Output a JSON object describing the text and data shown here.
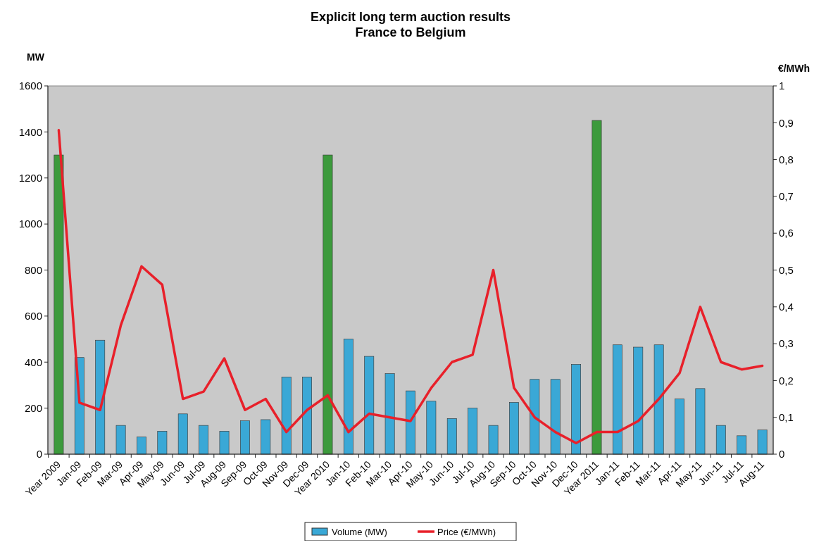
{
  "chart_data": {
    "type": "bar",
    "title": "Explicit long term auction results\nFrance to Belgium",
    "ylabel": "MW",
    "y2label": "€/MWh",
    "categories": [
      "Year 2009",
      "Jan-09",
      "Feb-09",
      "Mar-09",
      "Apr-09",
      "May-09",
      "Jun-09",
      "Jul-09",
      "Aug-09",
      "Sep-09",
      "Oct-09",
      "Nov-09",
      "Dec-09",
      "Year 2010",
      "Jan-10",
      "Feb-10",
      "Mar-10",
      "Apr-10",
      "May-10",
      "Jun-10",
      "Jul-10",
      "Aug-10",
      "Sep-10",
      "Oct-10",
      "Nov-10",
      "Dec-10",
      "Year 2011",
      "Jan-11",
      "Feb-11",
      "Mar-11",
      "Apr-11",
      "May-11",
      "Jun-11",
      "Jul-11",
      "Aug-11"
    ],
    "series": [
      {
        "name": "Volume (MW)",
        "color": "#3aa8d6",
        "colors": [
          "#3c9a3c",
          "#3aa8d6",
          "#3aa8d6",
          "#3aa8d6",
          "#3aa8d6",
          "#3aa8d6",
          "#3aa8d6",
          "#3aa8d6",
          "#3aa8d6",
          "#3aa8d6",
          "#3aa8d6",
          "#3aa8d6",
          "#3aa8d6",
          "#3c9a3c",
          "#3aa8d6",
          "#3aa8d6",
          "#3aa8d6",
          "#3aa8d6",
          "#3aa8d6",
          "#3aa8d6",
          "#3aa8d6",
          "#3aa8d6",
          "#3aa8d6",
          "#3aa8d6",
          "#3aa8d6",
          "#3aa8d6",
          "#3c9a3c",
          "#3aa8d6",
          "#3aa8d6",
          "#3aa8d6",
          "#3aa8d6",
          "#3aa8d6",
          "#3aa8d6",
          "#3aa8d6",
          "#3aa8d6"
        ],
        "values": [
          1300,
          420,
          495,
          125,
          75,
          100,
          175,
          125,
          100,
          145,
          150,
          335,
          335,
          1300,
          500,
          425,
          350,
          275,
          230,
          155,
          200,
          125,
          225,
          325,
          325,
          390,
          1450,
          475,
          465,
          475,
          240,
          285,
          125,
          80,
          105
        ]
      },
      {
        "name": "Price (€/MWh)",
        "type": "line",
        "axis": "y2",
        "color": "#e8202a",
        "values": [
          0.88,
          0.14,
          0.12,
          0.35,
          0.51,
          0.46,
          0.15,
          0.17,
          0.26,
          0.12,
          0.15,
          0.06,
          0.12,
          0.16,
          0.06,
          0.11,
          0.1,
          0.09,
          0.18,
          0.25,
          0.27,
          0.5,
          0.18,
          0.1,
          0.06,
          0.03,
          0.06,
          0.06,
          0.09,
          0.15,
          0.22,
          0.4,
          0.25,
          0.23,
          0.24
        ]
      }
    ],
    "ylim": [
      0,
      1600
    ],
    "yticks": [
      0,
      200,
      400,
      600,
      800,
      1000,
      1200,
      1400,
      1600
    ],
    "y2lim": [
      0,
      1
    ],
    "y2ticks": [
      0,
      {
        "value": 0.1,
        "label": "0,1"
      },
      {
        "value": 0.2,
        "label": "0,2"
      },
      {
        "value": 0.3,
        "label": "0,3"
      },
      {
        "value": 0.4,
        "label": "0,4"
      },
      {
        "value": 0.5,
        "label": "0,5"
      },
      {
        "value": 0.6,
        "label": "0,6"
      },
      {
        "value": 0.7,
        "label": "0,7"
      },
      {
        "value": 0.8,
        "label": "0,8"
      },
      {
        "value": 0.9,
        "label": "0,9"
      },
      1
    ],
    "legend": "bottom",
    "marker": "none",
    "line_style": "solid"
  }
}
